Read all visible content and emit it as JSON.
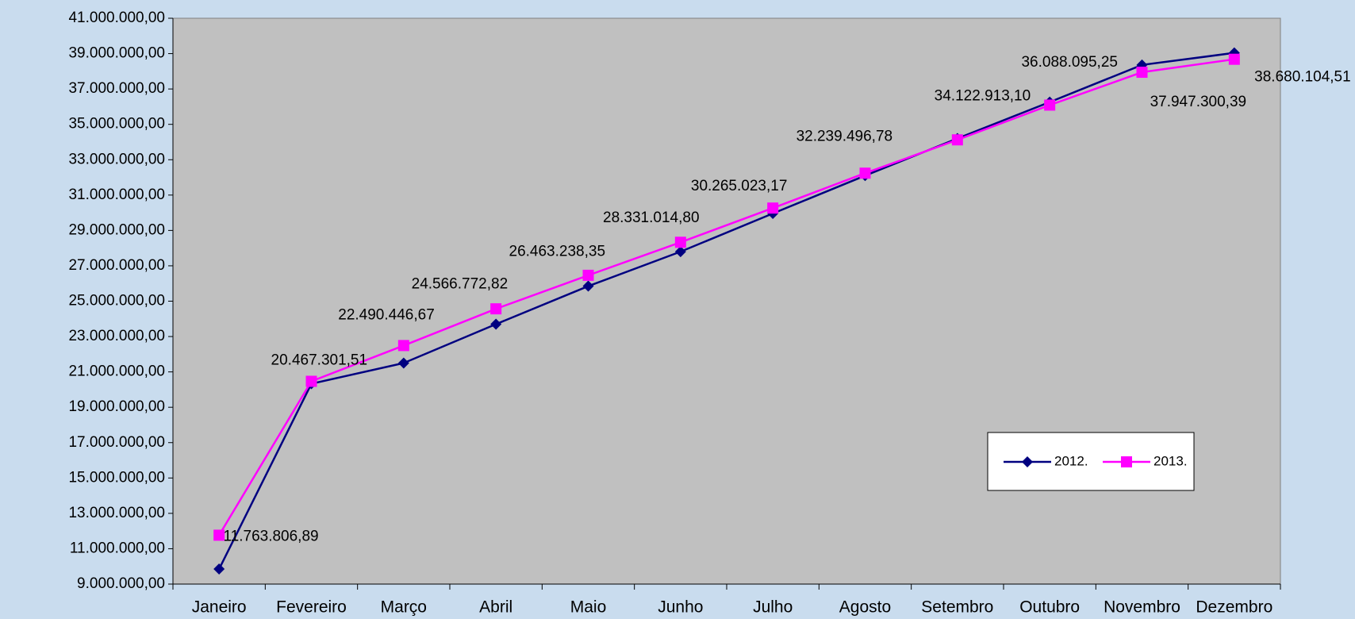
{
  "chart_data": {
    "type": "line",
    "categories": [
      "Janeiro",
      "Fevereiro",
      "Março",
      "Abril",
      "Maio",
      "Junho",
      "Julho",
      "Agosto",
      "Setembro",
      "Outubro",
      "Novembro",
      "Dezembro"
    ],
    "series": [
      {
        "name": "2012.",
        "color": "#000080",
        "marker": "diamond",
        "values": [
          9850000,
          20330000,
          21500000,
          23700000,
          25850000,
          27800000,
          29960000,
          32100000,
          34200000,
          36260000,
          38360000,
          39040000
        ]
      },
      {
        "name": "2013.",
        "color": "#ff00ff",
        "marker": "square",
        "values": [
          11763806.89,
          20467301.51,
          22490446.67,
          24566772.82,
          26463238.35,
          28331014.8,
          30265023.17,
          32239496.78,
          34122913.1,
          36088095.25,
          37947300.39,
          38680104.51
        ],
        "value_labels": [
          "11.763.806,89",
          "20.467.301,51",
          "22.490.446,67",
          "24.566.772,82",
          "26.463.238,35",
          "28.331.014,80",
          "30.265.023,17",
          "32.239.496,78",
          "34.122.913,10",
          "36.088.095,25",
          "37.947.300,39",
          "38.680.104,51"
        ]
      }
    ],
    "ylim": [
      9000000,
      41000000
    ],
    "yticks": [
      {
        "value": 9000000,
        "label": "9.000.000,00"
      },
      {
        "value": 11000000,
        "label": "11.000.000,00"
      },
      {
        "value": 13000000,
        "label": "13.000.000,00"
      },
      {
        "value": 15000000,
        "label": "15.000.000,00"
      },
      {
        "value": 17000000,
        "label": "17.000.000,00"
      },
      {
        "value": 19000000,
        "label": "19.000.000,00"
      },
      {
        "value": 21000000,
        "label": "21.000.000,00"
      },
      {
        "value": 23000000,
        "label": "23.000.000,00"
      },
      {
        "value": 25000000,
        "label": "25.000.000,00"
      },
      {
        "value": 27000000,
        "label": "27.000.000,00"
      },
      {
        "value": 29000000,
        "label": "29.000.000,00"
      },
      {
        "value": 31000000,
        "label": "31.000.000,00"
      },
      {
        "value": 33000000,
        "label": "33.000.000,00"
      },
      {
        "value": 35000000,
        "label": "35.000.000,00"
      },
      {
        "value": 37000000,
        "label": "37.000.000,00"
      },
      {
        "value": 39000000,
        "label": "39.000.000,00"
      },
      {
        "value": 41000000,
        "label": "41.000.000,00"
      }
    ],
    "grid": false,
    "legend": "right"
  }
}
